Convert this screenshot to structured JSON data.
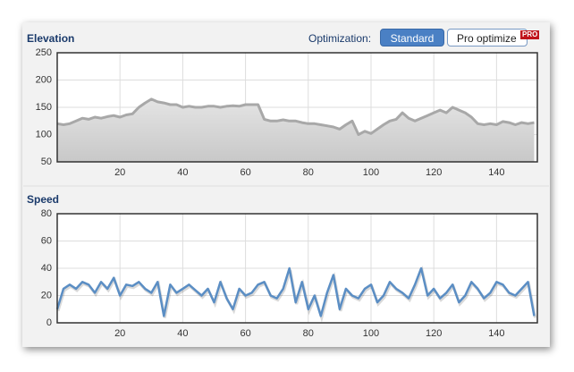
{
  "toolbar": {
    "label": "Optimization:",
    "options": [
      "Standard",
      "Pro optimize"
    ],
    "badge": "PRO"
  },
  "chart_data": [
    {
      "type": "area",
      "title": "Elevation",
      "color": "#a8a8a8",
      "grid": true,
      "x": [
        0,
        2,
        4,
        6,
        8,
        10,
        12,
        14,
        16,
        18,
        20,
        22,
        24,
        26,
        28,
        30,
        32,
        34,
        36,
        38,
        40,
        42,
        44,
        46,
        48,
        50,
        52,
        54,
        56,
        58,
        60,
        62,
        64,
        66,
        68,
        70,
        72,
        74,
        76,
        78,
        80,
        82,
        84,
        86,
        88,
        90,
        92,
        94,
        96,
        98,
        100,
        102,
        104,
        106,
        108,
        110,
        112,
        114,
        116,
        118,
        120,
        122,
        124,
        126,
        128,
        130,
        132,
        134,
        136,
        138,
        140,
        142,
        144,
        146,
        148,
        150,
        152
      ],
      "values": [
        120,
        118,
        120,
        125,
        130,
        128,
        132,
        130,
        133,
        135,
        132,
        136,
        138,
        150,
        158,
        165,
        160,
        158,
        155,
        155,
        150,
        152,
        150,
        150,
        152,
        152,
        150,
        152,
        153,
        152,
        155,
        155,
        155,
        128,
        125,
        125,
        127,
        125,
        125,
        122,
        120,
        120,
        118,
        116,
        114,
        110,
        118,
        125,
        100,
        106,
        102,
        110,
        118,
        125,
        128,
        140,
        130,
        125,
        130,
        135,
        140,
        145,
        140,
        150,
        145,
        140,
        132,
        120,
        118,
        120,
        118,
        124,
        122,
        118,
        122,
        120,
        122
      ],
      "xlim": [
        0,
        153
      ],
      "xticks": [
        20,
        40,
        60,
        80,
        100,
        120,
        140
      ],
      "ylim": [
        50,
        250
      ],
      "yticks": [
        50,
        100,
        150,
        200,
        250
      ]
    },
    {
      "type": "line",
      "title": "Speed",
      "color": "#5b8ec4",
      "grid": true,
      "x": [
        0,
        2,
        4,
        6,
        8,
        10,
        12,
        14,
        16,
        18,
        20,
        22,
        24,
        26,
        28,
        30,
        32,
        34,
        36,
        38,
        40,
        42,
        44,
        46,
        48,
        50,
        52,
        54,
        56,
        58,
        60,
        62,
        64,
        66,
        68,
        70,
        72,
        74,
        76,
        78,
        80,
        82,
        84,
        86,
        88,
        90,
        92,
        94,
        96,
        98,
        100,
        102,
        104,
        106,
        108,
        110,
        112,
        114,
        116,
        118,
        120,
        122,
        124,
        126,
        128,
        130,
        132,
        134,
        136,
        138,
        140,
        142,
        144,
        146,
        148,
        150,
        152
      ],
      "values": [
        10,
        25,
        28,
        25,
        30,
        28,
        22,
        30,
        25,
        33,
        20,
        28,
        27,
        30,
        25,
        22,
        30,
        5,
        28,
        22,
        25,
        28,
        24,
        20,
        25,
        15,
        30,
        18,
        10,
        25,
        20,
        22,
        28,
        30,
        20,
        18,
        25,
        40,
        15,
        30,
        10,
        20,
        5,
        22,
        35,
        10,
        25,
        20,
        18,
        25,
        28,
        15,
        20,
        30,
        25,
        22,
        18,
        28,
        40,
        20,
        25,
        18,
        22,
        28,
        15,
        20,
        30,
        25,
        18,
        22,
        30,
        28,
        22,
        20,
        25,
        30,
        5
      ],
      "xlim": [
        0,
        153
      ],
      "xticks": [
        20,
        40,
        60,
        80,
        100,
        120,
        140
      ],
      "ylim": [
        0,
        80
      ],
      "yticks": [
        0,
        20,
        40,
        60,
        80
      ]
    }
  ]
}
